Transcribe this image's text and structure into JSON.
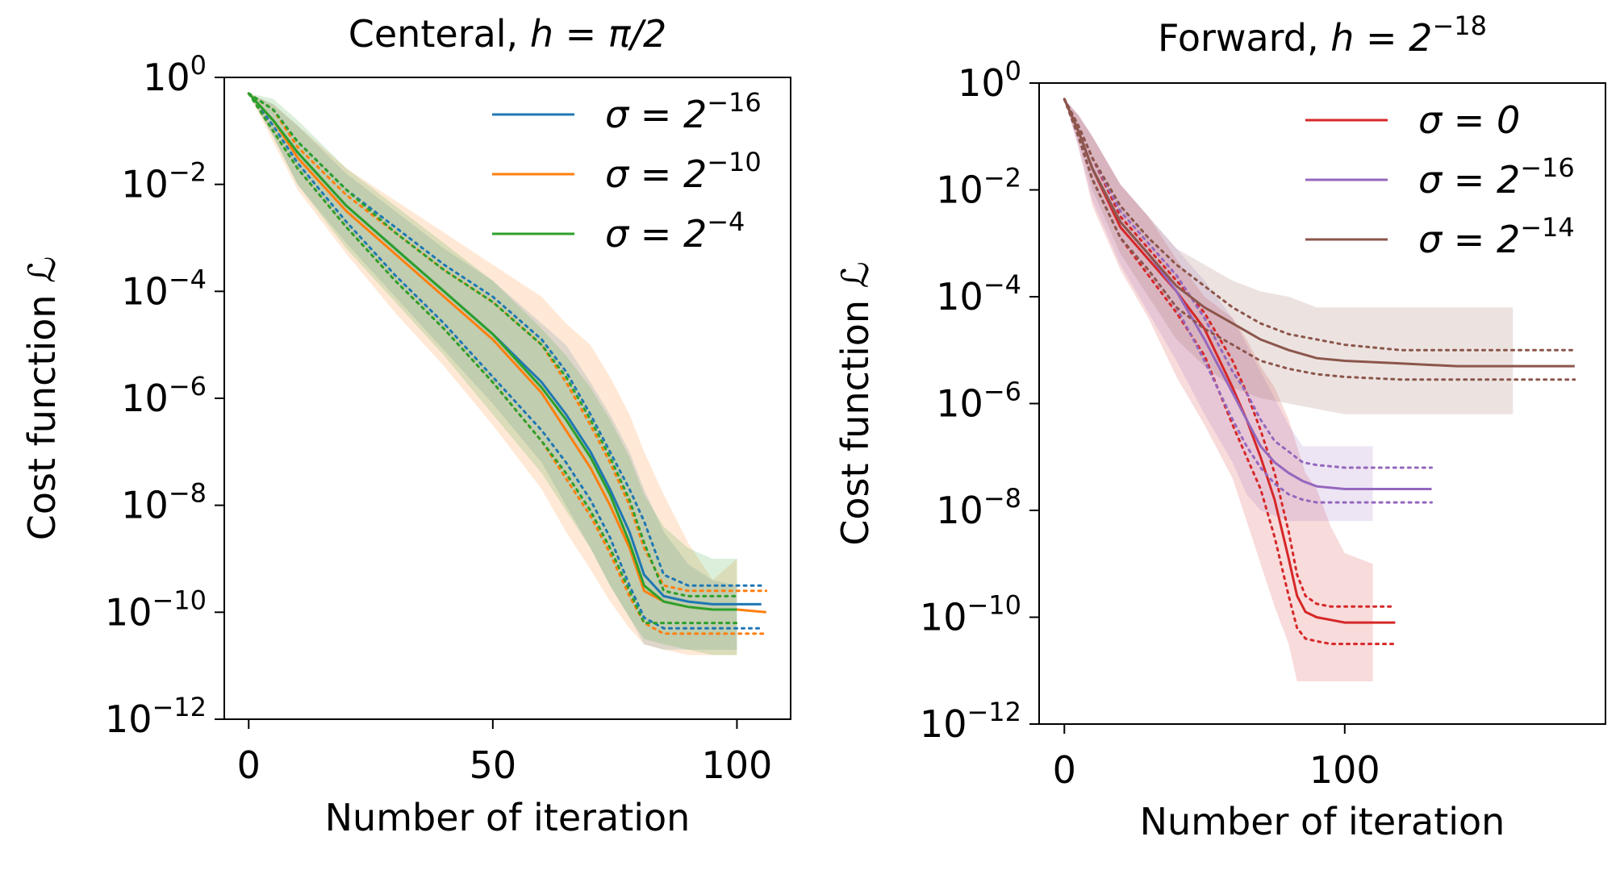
{
  "chart_data": [
    {
      "type": "line",
      "title": "Centeral, ",
      "title_math": "h = π/2",
      "xlabel": "Number of iteration",
      "ylabel": "Cost function ",
      "ylabel_math": "ℒ",
      "yscale": "log",
      "xlim": [
        -5,
        111
      ],
      "ylim": [
        1e-12,
        1
      ],
      "xticks": [
        0,
        50,
        100
      ],
      "xtick_labels": [
        "0",
        "50",
        "100"
      ],
      "yticks": [
        0,
        -2,
        -4,
        -6,
        -8,
        -10,
        -12
      ],
      "ytick_base": "10",
      "ytick_exponents": [
        "0",
        "−2",
        "−4",
        "−6",
        "−8",
        "−10",
        "−12"
      ],
      "grid": false,
      "legend_position": "top-right",
      "legend": [
        {
          "text": "σ = 2",
          "sup": "−16",
          "color": "#1f77b4"
        },
        {
          "text": "σ = 2",
          "sup": "−10",
          "color": "#ff7f0e"
        },
        {
          "text": "σ = 2",
          "sup": "−4",
          "color": "#2ca02c"
        }
      ],
      "series": [
        {
          "color": "#1f77b4",
          "x": [
            0,
            5,
            10,
            20,
            30,
            40,
            50,
            60,
            65,
            70,
            74,
            78,
            81,
            85,
            90,
            95,
            100,
            105
          ],
          "y_log10": [
            -0.3,
            -0.8,
            -1.4,
            -2.4,
            -3.2,
            -4.0,
            -4.8,
            -5.7,
            -6.3,
            -7.0,
            -7.7,
            -8.5,
            -9.3,
            -9.7,
            -9.8,
            -9.85,
            -9.85,
            -9.85
          ],
          "band_lower_log10": [
            -0.3,
            -0.9,
            -1.6,
            -2.7,
            -3.7,
            -4.6,
            -5.6,
            -6.6,
            -7.2,
            -7.9,
            -8.6,
            -9.5,
            -10.1,
            -10.3,
            -10.3,
            -10.3,
            -10.3,
            -10.3
          ],
          "band_upper_log10": [
            -0.3,
            -0.6,
            -1.2,
            -2.1,
            -2.8,
            -3.5,
            -4.1,
            -4.9,
            -5.5,
            -6.3,
            -7.0,
            -7.7,
            -8.3,
            -9.3,
            -9.5,
            -9.5,
            -9.5,
            -9.5
          ],
          "shade_lower_log10": [
            -0.3,
            -1.1,
            -2.0,
            -3.1,
            -4.1,
            -5.1,
            -6.1,
            -7.2,
            -8.0,
            -8.8,
            -9.5,
            -10.1,
            -10.6,
            -10.7,
            -10.7,
            -10.7,
            -10.7
          ],
          "shade_upper_log10": [
            -0.3,
            -0.5,
            -0.9,
            -1.8,
            -2.5,
            -3.2,
            -3.8,
            -4.6,
            -5.0,
            -5.7,
            -6.3,
            -7.0,
            -7.7,
            -8.5,
            -9.1,
            -9.4,
            -9.5
          ]
        },
        {
          "color": "#ff7f0e",
          "x": [
            0,
            5,
            10,
            20,
            30,
            40,
            50,
            60,
            65,
            70,
            74,
            78,
            81,
            85,
            90,
            95,
            100,
            106
          ],
          "y_log10": [
            -0.3,
            -0.8,
            -1.5,
            -2.5,
            -3.3,
            -4.1,
            -4.9,
            -5.9,
            -6.6,
            -7.3,
            -8.0,
            -8.8,
            -9.6,
            -9.8,
            -9.9,
            -9.95,
            -9.95,
            -10.0
          ],
          "band_lower_log10": [
            -0.3,
            -1.0,
            -1.7,
            -2.8,
            -3.8,
            -4.7,
            -5.7,
            -6.8,
            -7.5,
            -8.2,
            -8.9,
            -9.7,
            -10.2,
            -10.4,
            -10.4,
            -10.4,
            -10.4,
            -10.4
          ],
          "band_upper_log10": [
            -0.3,
            -0.6,
            -1.3,
            -2.2,
            -2.9,
            -3.6,
            -4.2,
            -5.0,
            -5.7,
            -6.5,
            -7.2,
            -8.0,
            -8.8,
            -9.5,
            -9.6,
            -9.6,
            -9.6,
            -9.6
          ],
          "shade_lower_log10": [
            -0.3,
            -1.2,
            -2.1,
            -3.3,
            -4.4,
            -5.4,
            -6.5,
            -7.7,
            -8.5,
            -9.2,
            -9.8,
            -10.3,
            -10.6,
            -10.7,
            -10.8,
            -10.8,
            -10.8
          ],
          "shade_upper_log10": [
            -0.3,
            -0.5,
            -0.9,
            -1.7,
            -2.3,
            -2.9,
            -3.5,
            -4.1,
            -4.6,
            -5.0,
            -5.6,
            -6.3,
            -7.0,
            -7.8,
            -8.7,
            -9.4,
            -9.0
          ]
        },
        {
          "color": "#2ca02c",
          "x": [
            0,
            5,
            10,
            20,
            30,
            40,
            50,
            60,
            65,
            70,
            74,
            78,
            81,
            85,
            90,
            95,
            100
          ],
          "y_log10": [
            -0.3,
            -0.8,
            -1.4,
            -2.4,
            -3.2,
            -4.0,
            -4.8,
            -5.8,
            -6.4,
            -7.1,
            -7.8,
            -8.7,
            -9.5,
            -9.8,
            -9.9,
            -9.95,
            -9.95
          ],
          "band_lower_log10": [
            -0.3,
            -1.0,
            -1.7,
            -2.8,
            -3.8,
            -4.7,
            -5.7,
            -6.8,
            -7.4,
            -8.1,
            -8.8,
            -9.6,
            -10.2,
            -10.2,
            -10.2,
            -10.2,
            -10.2
          ],
          "band_upper_log10": [
            -0.3,
            -0.6,
            -1.2,
            -2.1,
            -2.9,
            -3.6,
            -4.2,
            -5.0,
            -5.6,
            -6.4,
            -7.1,
            -7.9,
            -8.7,
            -9.6,
            -9.7,
            -9.7,
            -9.7
          ],
          "shade_lower_log10": [
            -0.3,
            -1.1,
            -2.0,
            -3.2,
            -4.2,
            -5.2,
            -6.3,
            -7.4,
            -8.1,
            -8.8,
            -9.5,
            -10.1,
            -10.5,
            -10.6,
            -10.7,
            -10.8,
            -10.8
          ],
          "shade_upper_log10": [
            -0.3,
            -0.4,
            -0.8,
            -1.7,
            -2.4,
            -3.1,
            -3.8,
            -4.7,
            -5.2,
            -5.8,
            -6.4,
            -7.1,
            -7.8,
            -8.4,
            -8.8,
            -9.0,
            -9.0
          ]
        }
      ]
    },
    {
      "type": "line",
      "title": "Forward, ",
      "title_math": "h = 2",
      "title_sup": "−18",
      "xlabel": "Number of iteration",
      "ylabel": "Cost function ",
      "ylabel_math": "ℒ",
      "yscale": "log",
      "xlim": [
        -9,
        193
      ],
      "ylim": [
        1e-12,
        1
      ],
      "xticks": [
        0,
        100
      ],
      "xtick_labels": [
        "0",
        "100"
      ],
      "yticks": [
        0,
        -2,
        -4,
        -6,
        -8,
        -10,
        -12
      ],
      "ytick_base": "10",
      "ytick_exponents": [
        "0",
        "−2",
        "−4",
        "−6",
        "−8",
        "−10",
        "−12"
      ],
      "grid": false,
      "legend_position": "top-right",
      "legend": [
        {
          "text": "σ = 0",
          "sup": "",
          "color": "#d62728"
        },
        {
          "text": "σ = 2",
          "sup": "−16",
          "color": "#9467bd"
        },
        {
          "text": "σ = 2",
          "sup": "−14",
          "color": "#8c564b"
        }
      ],
      "series": [
        {
          "color": "#d62728",
          "x": [
            0,
            5,
            10,
            20,
            30,
            40,
            50,
            60,
            65,
            70,
            75,
            80,
            83,
            86,
            90,
            95,
            100,
            110,
            118
          ],
          "y_log10": [
            -0.3,
            -0.9,
            -1.6,
            -2.7,
            -3.3,
            -3.9,
            -4.6,
            -5.7,
            -6.3,
            -7.0,
            -7.8,
            -8.9,
            -9.6,
            -9.9,
            -10.0,
            -10.05,
            -10.1,
            -10.1,
            -10.1
          ],
          "band_lower_log10": [
            -0.3,
            -1.0,
            -1.8,
            -2.9,
            -3.6,
            -4.3,
            -5.1,
            -6.4,
            -7.0,
            -7.6,
            -8.5,
            -9.6,
            -10.2,
            -10.4,
            -10.45,
            -10.5,
            -10.5,
            -10.5,
            -10.5
          ],
          "band_upper_log10": [
            -0.3,
            -0.8,
            -1.4,
            -2.5,
            -3.1,
            -3.7,
            -4.3,
            -5.2,
            -5.8,
            -6.5,
            -7.3,
            -8.4,
            -9.2,
            -9.6,
            -9.75,
            -9.8,
            -9.8,
            -9.8,
            -9.8
          ],
          "shade_lower_log10": [
            -0.3,
            -1.2,
            -2.3,
            -3.5,
            -4.4,
            -5.5,
            -6.4,
            -7.4,
            -8.2,
            -9.0,
            -9.8,
            -10.5,
            -11.2,
            -11.2,
            -11.2,
            -11.2,
            -11.2,
            -11.2
          ],
          "shade_upper_log10": [
            -0.3,
            -0.6,
            -1.0,
            -1.9,
            -2.5,
            -3.3,
            -4.0,
            -4.4,
            -4.8,
            -5.3,
            -5.7,
            -6.3,
            -6.8,
            -7.3,
            -7.6,
            -8.3,
            -8.8,
            -9.0
          ]
        },
        {
          "color": "#9467bd",
          "x": [
            0,
            5,
            10,
            20,
            30,
            40,
            50,
            60,
            65,
            70,
            75,
            80,
            85,
            90,
            100,
            110,
            120,
            131
          ],
          "y_log10": [
            -0.3,
            -0.9,
            -1.6,
            -2.6,
            -3.2,
            -3.9,
            -4.8,
            -5.8,
            -6.3,
            -6.8,
            -7.1,
            -7.3,
            -7.45,
            -7.55,
            -7.6,
            -7.6,
            -7.6,
            -7.6
          ],
          "band_lower_log10": [
            -0.3,
            -1.0,
            -1.8,
            -2.9,
            -3.5,
            -4.2,
            -5.2,
            -6.3,
            -6.8,
            -7.2,
            -7.5,
            -7.7,
            -7.8,
            -7.85,
            -7.85,
            -7.85,
            -7.85,
            -7.85
          ],
          "band_upper_log10": [
            -0.3,
            -0.8,
            -1.4,
            -2.4,
            -3.0,
            -3.6,
            -4.4,
            -5.4,
            -5.8,
            -6.3,
            -6.7,
            -6.9,
            -7.1,
            -7.15,
            -7.2,
            -7.2,
            -7.2,
            -7.2
          ],
          "shade_lower_log10": [
            -0.3,
            -1.2,
            -2.2,
            -3.4,
            -4.3,
            -5.2,
            -6.2,
            -7.1,
            -7.7,
            -8.0,
            -8.1,
            -8.2,
            -8.2,
            -8.2,
            -8.2,
            -8.2
          ],
          "shade_upper_log10": [
            -0.3,
            -0.6,
            -1.0,
            -1.9,
            -2.5,
            -3.1,
            -3.7,
            -4.4,
            -4.9,
            -5.4,
            -5.9,
            -6.4,
            -6.8,
            -6.8,
            -6.8,
            -6.8
          ]
        },
        {
          "color": "#8c564b",
          "x": [
            0,
            5,
            10,
            20,
            30,
            40,
            50,
            60,
            70,
            80,
            90,
            100,
            120,
            140,
            160,
            182
          ],
          "y_log10": [
            -0.3,
            -0.9,
            -1.6,
            -2.6,
            -3.2,
            -3.8,
            -4.2,
            -4.5,
            -4.8,
            -5.0,
            -5.15,
            -5.2,
            -5.25,
            -5.3,
            -5.3,
            -5.3
          ],
          "band_lower_log10": [
            -0.3,
            -1.0,
            -1.8,
            -2.9,
            -3.5,
            -4.2,
            -4.6,
            -4.9,
            -5.2,
            -5.35,
            -5.45,
            -5.5,
            -5.55,
            -5.55,
            -5.55,
            -5.55
          ],
          "band_upper_log10": [
            -0.3,
            -0.8,
            -1.4,
            -2.3,
            -2.9,
            -3.4,
            -3.8,
            -4.2,
            -4.5,
            -4.7,
            -4.8,
            -4.9,
            -5.0,
            -5.0,
            -5.0,
            -5.0
          ],
          "shade_lower_log10": [
            -0.3,
            -1.1,
            -2.0,
            -3.2,
            -4.0,
            -4.8,
            -5.3,
            -5.7,
            -5.9,
            -6.0,
            -6.1,
            -6.2,
            -6.2,
            -6.2,
            -6.2
          ],
          "shade_upper_log10": [
            -0.3,
            -0.6,
            -1.0,
            -1.9,
            -2.5,
            -3.1,
            -3.4,
            -3.7,
            -3.9,
            -4.0,
            -4.2,
            -4.2,
            -4.2,
            -4.2,
            -4.2
          ]
        }
      ]
    }
  ]
}
